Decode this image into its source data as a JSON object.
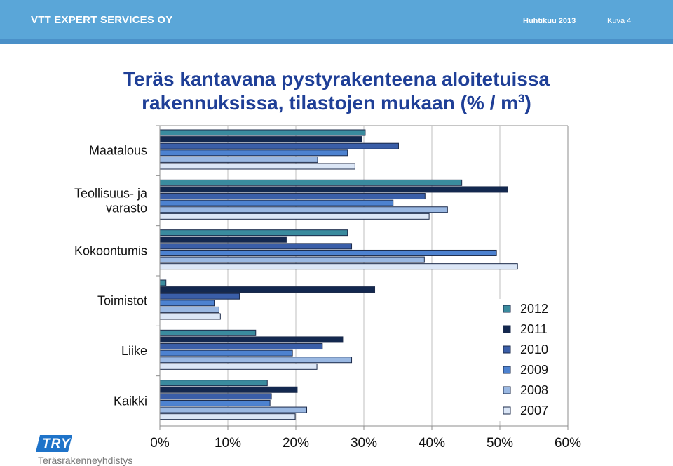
{
  "header": {
    "company": "VTT EXPERT SERVICES OY",
    "date": "Huhtikuu 2013",
    "slide_number": "Kuva 4"
  },
  "title": {
    "main": "Teräs kantavana pystyrakenteena aloitetuissa rakennuksissa, tilastojen mukaan (% / m",
    "superscript": "3",
    "suffix": ")"
  },
  "logo": {
    "mark": "TRY",
    "name": "Teräsrakenneyhdistys"
  },
  "colors": {
    "2012": "#3a8b9e",
    "2011": "#13284f",
    "2010": "#3a5ea8",
    "2009": "#4d82d0",
    "2008": "#9ab8e2",
    "2007": "#dbe6f6"
  },
  "chart_data": {
    "type": "bar",
    "orientation": "horizontal",
    "categories": [
      "Maatalous",
      "Teollisuus- ja varasto",
      "Kokoontumis",
      "Toimistot",
      "Liike",
      "Kaikki"
    ],
    "series": [
      {
        "name": "2012",
        "values": [
          30.2,
          44.4,
          27.6,
          0.9,
          14.1,
          15.8
        ]
      },
      {
        "name": "2011",
        "values": [
          29.7,
          51.1,
          18.6,
          31.6,
          26.9,
          20.2
        ]
      },
      {
        "name": "2010",
        "values": [
          35.1,
          39.0,
          28.2,
          11.7,
          23.9,
          16.4
        ]
      },
      {
        "name": "2009",
        "values": [
          27.6,
          34.3,
          49.5,
          8.0,
          19.5,
          16.2
        ]
      },
      {
        "name": "2008",
        "values": [
          23.2,
          42.3,
          38.9,
          8.7,
          28.2,
          21.6
        ]
      },
      {
        "name": "2007",
        "values": [
          28.7,
          39.6,
          52.6,
          8.9,
          23.1,
          19.9
        ]
      }
    ],
    "xlim": [
      0,
      60
    ],
    "x_ticks": [
      "0%",
      "10%",
      "20%",
      "30%",
      "40%",
      "50%",
      "60%"
    ],
    "legend_position": "bottom-right",
    "grid": true
  }
}
